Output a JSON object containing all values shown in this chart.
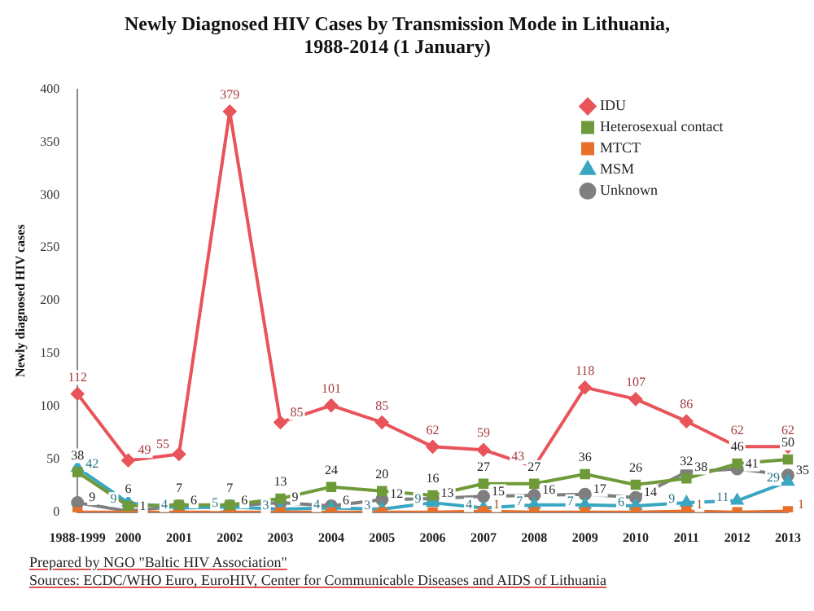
{
  "chart_data": {
    "type": "line",
    "title": "Newly Diagnosed HIV Cases by Transmission Mode in Lithuania,\n1988-2014 (1 January)",
    "ylabel": "Newly diagnosed HIV cases",
    "categories": [
      "1988-1999",
      "2000",
      "2001",
      "2002",
      "2003",
      "2004",
      "2005",
      "2006",
      "2007",
      "2008",
      "2009",
      "2010",
      "2011",
      "2012",
      "2013"
    ],
    "series": [
      {
        "name": "IDU",
        "color": "#e8545a",
        "marker": "diamond",
        "values": [
          112,
          49,
          55,
          379,
          85,
          101,
          85,
          62,
          59,
          43,
          118,
          107,
          86,
          62,
          62
        ],
        "value_labels": [
          "112",
          "49",
          "55",
          "379",
          "85",
          "101",
          "85",
          "62",
          "59",
          "43",
          "118",
          "107",
          "86",
          "62",
          "62"
        ]
      },
      {
        "name": "Heterosexual contact",
        "color": "#6f9a3a",
        "marker": "square",
        "values": [
          38,
          6,
          7,
          7,
          13,
          24,
          20,
          16,
          27,
          27,
          36,
          26,
          32,
          46,
          50
        ],
        "value_labels": [
          "38",
          "6",
          "7",
          "7",
          "13",
          "24",
          "20",
          "16",
          "27",
          "27",
          "36",
          "26",
          "32",
          "46",
          "50"
        ]
      },
      {
        "name": "MTCT",
        "color": "#e8702a",
        "marker": "square",
        "values": [
          0,
          0,
          0,
          0,
          0,
          0,
          0,
          0,
          1,
          0,
          0,
          0,
          1,
          0,
          1
        ],
        "value_labels": [
          null,
          null,
          null,
          null,
          null,
          null,
          null,
          null,
          "1",
          null,
          null,
          null,
          "1",
          null,
          "1"
        ]
      },
      {
        "name": "MSM",
        "color": "#3aa6c0",
        "marker": "triangle",
        "values": [
          42,
          9,
          4,
          5,
          3,
          4,
          3,
          9,
          4,
          7,
          7,
          6,
          9,
          11,
          29
        ],
        "value_labels": [
          "42",
          "9",
          "4",
          "5",
          "3",
          "4",
          "3",
          "9",
          "4",
          "7",
          "7",
          "6",
          "9",
          "11",
          "29"
        ]
      },
      {
        "name": "Unknown",
        "color": "#7f7f7f",
        "marker": "circle",
        "values": [
          9,
          1,
          6,
          6,
          9,
          6,
          12,
          13,
          15,
          16,
          17,
          14,
          38,
          41,
          35
        ],
        "value_labels": [
          "9",
          "1",
          "6",
          "6",
          "9",
          "6",
          "12",
          "13",
          "15",
          "16",
          "17",
          "14",
          "38",
          "41",
          "35"
        ]
      }
    ],
    "ylim": [
      0,
      400
    ],
    "yticks": [
      0,
      50,
      100,
      150,
      200,
      250,
      300,
      350,
      400
    ],
    "grid": false,
    "legend": "top right",
    "annotations": [
      "Prepared by NGO \"Baltic  HIV Association\"",
      "Sources: ECDC/WHO Euro, EuroHIV, Center for Communicable  Diseases and AIDS of Lithuania"
    ]
  }
}
